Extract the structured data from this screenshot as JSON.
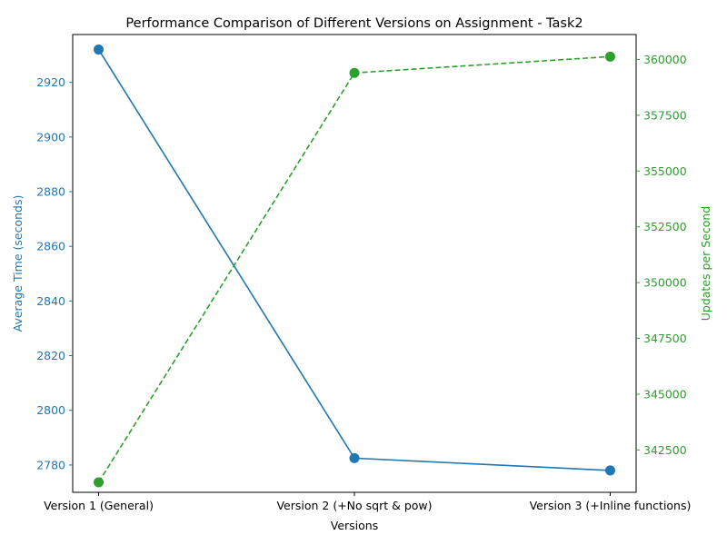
{
  "chart_data": {
    "type": "line",
    "title": "Performance Comparison of Different Versions on Assignment - Task2",
    "xlabel": "Versions",
    "categories": [
      "Version 1 (General)",
      "Version 2 (+No sqrt & pow)",
      "Version 3 (+Inline functions)"
    ],
    "left_axis": {
      "label": "Average Time (seconds)",
      "color": "#1f77b4",
      "ylim": [
        2770.0,
        2937.5
      ],
      "ticks": [
        2780,
        2800,
        2820,
        2840,
        2860,
        2880,
        2900,
        2920
      ]
    },
    "right_axis": {
      "label": "Updates per Second",
      "color": "#2ca02c",
      "ylim": [
        340600,
        361120
      ],
      "ticks": [
        342500,
        345000,
        347500,
        350000,
        352500,
        355000,
        357500,
        360000
      ]
    },
    "series": [
      {
        "axis": "left",
        "color": "#1f77b4",
        "line_style": "solid",
        "marker": "circle",
        "values": [
          2932,
          2782.5,
          2778
        ]
      },
      {
        "axis": "right",
        "color": "#2ca02c",
        "line_style": "dashed",
        "marker": "circle",
        "values": [
          341050,
          359400,
          360130
        ]
      }
    ],
    "grid": false,
    "legend": "none"
  }
}
